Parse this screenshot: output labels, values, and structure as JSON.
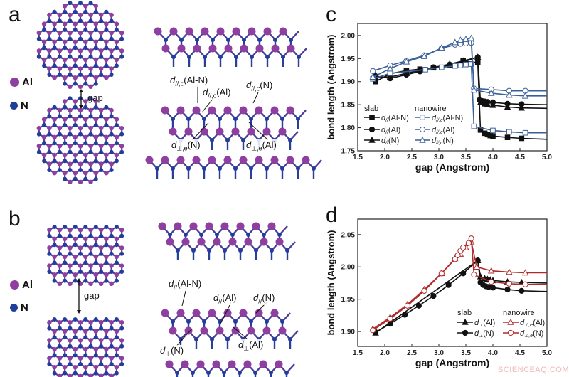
{
  "panels": {
    "a": {
      "letter": "a",
      "legend": [
        {
          "label": "Al",
          "color": "#8e3fa0"
        },
        {
          "label": "N",
          "color": "#1f3f9a"
        }
      ],
      "gap_label": "gap",
      "labels": [
        {
          "d": "d",
          "sub": "//,c",
          "arg": "(Al-N)"
        },
        {
          "d": "d",
          "sub": "//,c",
          "arg": "(Al)"
        },
        {
          "d": "d",
          "sub": "//,c",
          "arg": "(N)"
        },
        {
          "d": "d",
          "sub": "⊥,e",
          "arg": "(N)"
        },
        {
          "d": "d",
          "sub": "⊥,e",
          "arg": "(Al)"
        }
      ]
    },
    "b": {
      "letter": "b",
      "legend": [
        {
          "label": "Al",
          "color": "#8e3fa0"
        },
        {
          "label": "N",
          "color": "#1f3f9a"
        }
      ],
      "gap_label": "gap",
      "labels": [
        {
          "d": "d",
          "sub": "//",
          "arg": "(Al-N)"
        },
        {
          "d": "d",
          "sub": "//",
          "arg": "(Al)"
        },
        {
          "d": "d",
          "sub": "//",
          "arg": "(N)"
        },
        {
          "d": "d",
          "sub": "⊥",
          "arg": "(N)"
        },
        {
          "d": "d",
          "sub": "⊥",
          "arg": "(Al)"
        }
      ]
    },
    "c": {
      "letter": "c"
    },
    "d": {
      "letter": "d"
    }
  },
  "chart_data": [
    {
      "panel": "c",
      "type": "line",
      "xlabel": "gap (Angstrom)",
      "ylabel": "bond length (Angstrom)",
      "xlim": [
        1.5,
        5.0
      ],
      "ylim": [
        1.75,
        2.026
      ],
      "xticks": [
        "1.5",
        "2.0",
        "2.5",
        "3.0",
        "3.5",
        "4.0",
        "4.5",
        "5.0"
      ],
      "yticks": [
        "1.75",
        "1.80",
        "1.85",
        "1.90",
        "1.95",
        "2.00"
      ],
      "grid": false,
      "legend": {
        "placement": "bottom-left",
        "groups": [
          "slab",
          "nanowire"
        ]
      },
      "colors": {
        "slab": "#111111",
        "nanowire": "#3b5f98"
      },
      "series": [
        {
          "group": "slab",
          "name": {
            "d": "d",
            "sub": "//",
            "arg": "(Al-N)"
          },
          "marker": "square",
          "filled": true,
          "x": [
            1.83,
            2.1,
            2.4,
            2.65,
            2.9,
            3.2,
            3.45,
            3.72,
            3.77,
            3.85,
            3.9,
            3.95,
            4.0,
            4.27,
            4.53,
            5.0
          ],
          "y": [
            1.9,
            1.917,
            1.924,
            1.927,
            1.93,
            1.935,
            1.945,
            1.941,
            1.795,
            1.788,
            1.785,
            1.783,
            1.782,
            1.779,
            1.777,
            1.775
          ]
        },
        {
          "group": "slab",
          "name": {
            "d": "d",
            "sub": "//",
            "arg": "(Al)"
          },
          "marker": "circle",
          "filled": true,
          "x": [
            1.83,
            2.1,
            2.4,
            2.65,
            2.9,
            3.2,
            3.45,
            3.72,
            3.75,
            3.8,
            3.85,
            3.9,
            4.0,
            4.27,
            4.53,
            5.0
          ],
          "y": [
            1.912,
            1.907,
            1.915,
            1.922,
            1.931,
            1.937,
            1.943,
            1.953,
            1.86,
            1.858,
            1.857,
            1.856,
            1.855,
            1.852,
            1.851,
            1.85
          ]
        },
        {
          "group": "slab",
          "name": {
            "d": "d",
            "sub": "//",
            "arg": "(N)"
          },
          "marker": "triangle",
          "filled": true,
          "x": [
            1.83,
            2.1,
            2.4,
            2.65,
            2.9,
            3.2,
            3.45,
            3.72,
            3.77,
            3.85,
            3.9,
            4.0,
            4.27,
            4.53,
            5.0
          ],
          "y": [
            1.91,
            1.91,
            1.918,
            1.924,
            1.93,
            1.938,
            1.945,
            1.953,
            1.855,
            1.852,
            1.85,
            1.849,
            1.845,
            1.843,
            1.842
          ]
        },
        {
          "group": "nanowire",
          "name": {
            "d": "d",
            "sub": "//,c",
            "arg": "(Al-N)"
          },
          "marker": "square",
          "filled": false,
          "x": [
            1.78,
            2.1,
            2.75,
            3.05,
            3.3,
            3.4,
            3.5,
            3.6,
            3.65,
            4.0,
            4.3,
            4.6,
            5.0
          ],
          "y": [
            1.906,
            1.918,
            1.926,
            1.931,
            1.934,
            1.935,
            1.937,
            1.938,
            1.803,
            1.794,
            1.791,
            1.789,
            1.789
          ]
        },
        {
          "group": "nanowire",
          "name": {
            "d": "d",
            "sub": "//,c",
            "arg": "(Al)"
          },
          "marker": "circle",
          "filled": false,
          "x": [
            1.78,
            2.1,
            2.4,
            2.73,
            3.05,
            3.3,
            3.4,
            3.5,
            3.6,
            3.65,
            3.97,
            4.3,
            4.6,
            5.0
          ],
          "y": [
            1.923,
            1.935,
            1.945,
            1.957,
            1.972,
            1.98,
            1.982,
            1.983,
            1.984,
            1.885,
            1.883,
            1.88,
            1.88,
            1.88
          ]
        },
        {
          "group": "nanowire",
          "name": {
            "d": "d",
            "sub": "//,c",
            "arg": "(N)"
          },
          "marker": "triangle",
          "filled": false,
          "x": [
            1.78,
            2.1,
            2.4,
            2.73,
            3.05,
            3.3,
            3.4,
            3.5,
            3.6,
            3.65,
            3.97,
            4.3,
            4.6,
            5.0
          ],
          "y": [
            1.91,
            1.928,
            1.943,
            1.955,
            1.973,
            1.985,
            1.99,
            1.992,
            1.994,
            1.882,
            1.875,
            1.871,
            1.869,
            1.869
          ]
        }
      ]
    },
    {
      "panel": "d",
      "type": "line",
      "xlabel": "gap (Angstrom)",
      "ylabel": "bond length (Angstrom)",
      "xlim": [
        1.5,
        5.0
      ],
      "ylim": [
        1.877,
        2.074
      ],
      "xticks": [
        "1.5",
        "2.0",
        "2.5",
        "3.0",
        "3.5",
        "4.0",
        "4.5",
        "5.0"
      ],
      "yticks": [
        "1.90",
        "1.95",
        "2.00",
        "2.05"
      ],
      "grid": false,
      "legend": {
        "placement": "bottom-right",
        "groups": [
          "slab",
          "nanowire"
        ]
      },
      "colors": {
        "slab": "#111111",
        "nanowire": "#b02a2a"
      },
      "series": [
        {
          "group": "slab",
          "name": {
            "d": "d",
            "sub": "⊥",
            "arg": "(Al)"
          },
          "marker": "triangle",
          "filled": true,
          "x": [
            1.83,
            3.72,
            3.77,
            3.85,
            3.9,
            3.95,
            4.0,
            4.27,
            4.53,
            5.0
          ],
          "y": [
            1.898,
            2.01,
            1.985,
            1.982,
            1.981,
            1.98,
            1.979,
            1.977,
            1.976,
            1.975
          ]
        },
        {
          "group": "slab",
          "name": {
            "d": "d",
            "sub": "⊥",
            "arg": "(N)"
          },
          "marker": "circle",
          "filled": true,
          "x": [
            1.83,
            2.1,
            2.37,
            2.63,
            2.9,
            3.18,
            3.45,
            3.72,
            3.77,
            3.82,
            3.87,
            3.92,
            4.0,
            4.27,
            4.53,
            5.0
          ],
          "y": [
            1.899,
            1.912,
            1.926,
            1.94,
            1.955,
            1.972,
            1.99,
            2.01,
            1.976,
            1.972,
            1.97,
            1.969,
            1.968,
            1.965,
            1.963,
            1.962
          ]
        },
        {
          "group": "nanowire",
          "name": {
            "d": "d",
            "sub": "⊥,e",
            "arg": "(Al)"
          },
          "marker": "triangle",
          "filled": false,
          "x": [
            1.78,
            2.1,
            2.42,
            2.73,
            3.05,
            3.3,
            3.4,
            3.5,
            3.6,
            3.7,
            3.97,
            4.3,
            4.6,
            5.0
          ],
          "y": [
            1.904,
            1.922,
            1.942,
            1.965,
            1.99,
            2.013,
            2.02,
            2.03,
            2.039,
            2.0,
            1.994,
            1.992,
            1.991,
            1.991
          ]
        },
        {
          "group": "nanowire",
          "name": {
            "d": "d",
            "sub": "⊥,e",
            "arg": "(N)"
          },
          "marker": "circle",
          "filled": false,
          "x": [
            1.78,
            2.1,
            2.42,
            2.73,
            3.05,
            3.3,
            3.35,
            3.4,
            3.45,
            3.55,
            3.6,
            3.65,
            3.97,
            4.3,
            4.6,
            5.0
          ],
          "y": [
            1.902,
            1.92,
            1.94,
            1.963,
            1.99,
            2.012,
            2.018,
            2.025,
            2.03,
            2.037,
            2.044,
            1.988,
            1.977,
            1.974,
            1.973,
            1.973
          ]
        }
      ]
    }
  ],
  "watermark": "SCIENCEAQ.COM"
}
